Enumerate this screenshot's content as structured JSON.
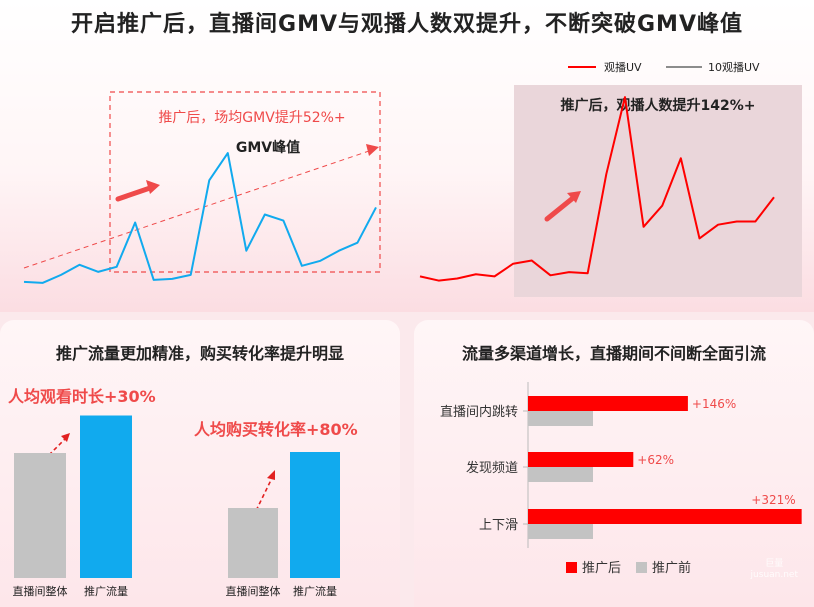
{
  "title": "开启推广后，直播间GMV与观播人数双提升，不断突破GMV峰值",
  "colors": {
    "red": "#ff0000",
    "blue": "#11aaee",
    "gray": "#c3c3c3",
    "annotation": "#ef4a4a"
  },
  "chart_data": [
    {
      "type": "line",
      "name": "gmv-chart",
      "annotation_main": "推广后，场均GMV提升52%+",
      "annotation_peak": "GMV峰值",
      "series": [
        {
          "values": [
            14,
            13,
            21,
            31,
            24,
            29,
            73,
            16,
            17,
            21,
            115,
            142,
            45,
            81,
            75,
            30,
            35,
            45,
            53,
            88
          ]
        }
      ],
      "ylim": [
        0,
        160
      ]
    },
    {
      "type": "line",
      "name": "viewers-chart",
      "annotation": "推广后，观播人数提升142%+",
      "legend": [
        "观播UV",
        "10观播UV"
      ],
      "series": [
        {
          "name": "观播UV",
          "values": [
            30,
            26,
            28,
            32,
            30,
            42,
            45,
            31,
            34,
            33,
            127,
            200,
            77,
            97,
            142,
            66,
            79,
            82,
            82,
            105
          ]
        }
      ],
      "ylim": [
        0,
        220
      ]
    },
    {
      "type": "bar",
      "name": "watch-time-chart",
      "title": "推广流量更加精准，购买转化率提升明显",
      "annotation": "人均观看时长+30%",
      "categories": [
        "直播间整体",
        "推广流量"
      ],
      "values": [
        100,
        130
      ]
    },
    {
      "type": "bar",
      "name": "conversion-chart",
      "annotation": "人均购买转化率+80%",
      "categories": [
        "直播间整体",
        "推广流量"
      ],
      "values": [
        100,
        180
      ]
    },
    {
      "type": "bar",
      "orientation": "horizontal",
      "name": "channel-chart",
      "title": "流量多渠道增长，直播期间不间断全面引流",
      "categories": [
        "直播间内跳转",
        "发现频道",
        "上下滑"
      ],
      "series": [
        {
          "name": "推广后",
          "values": [
            246,
            162,
            421
          ],
          "labels": [
            "+146%",
            "+62%",
            "+321%"
          ]
        },
        {
          "name": "推广前",
          "values": [
            100,
            100,
            100
          ]
        }
      ],
      "legend": [
        "推广后",
        "推广前"
      ]
    }
  ],
  "watermark": [
    "巨量",
    "jusuan.net"
  ]
}
